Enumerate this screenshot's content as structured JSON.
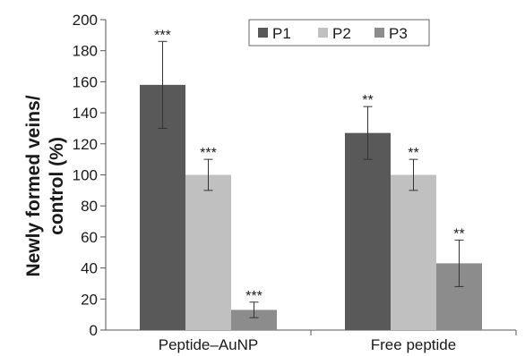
{
  "chart_data": {
    "type": "bar",
    "categories": [
      "Peptide–AuNP",
      "Free peptide"
    ],
    "series": [
      {
        "name": "P1",
        "color": "#595959",
        "values": [
          158,
          127
        ],
        "errors": [
          28,
          17
        ],
        "significance": [
          "***",
          "**"
        ]
      },
      {
        "name": "P2",
        "color": "#c0c0c0",
        "values": [
          100,
          100
        ],
        "errors": [
          10,
          10
        ],
        "significance": [
          "***",
          "**"
        ]
      },
      {
        "name": "P3",
        "color": "#8c8c8c",
        "values": [
          13,
          43
        ],
        "errors": [
          5,
          15
        ],
        "significance": [
          "***",
          "**"
        ]
      }
    ],
    "ylabel_lines": [
      "Newly formed veins/",
      "control (%)"
    ],
    "ylim": [
      0,
      200
    ],
    "yticks": [
      0,
      20,
      40,
      60,
      80,
      100,
      120,
      140,
      160,
      180,
      200
    ],
    "legend_position": "top-right",
    "grid": false
  }
}
